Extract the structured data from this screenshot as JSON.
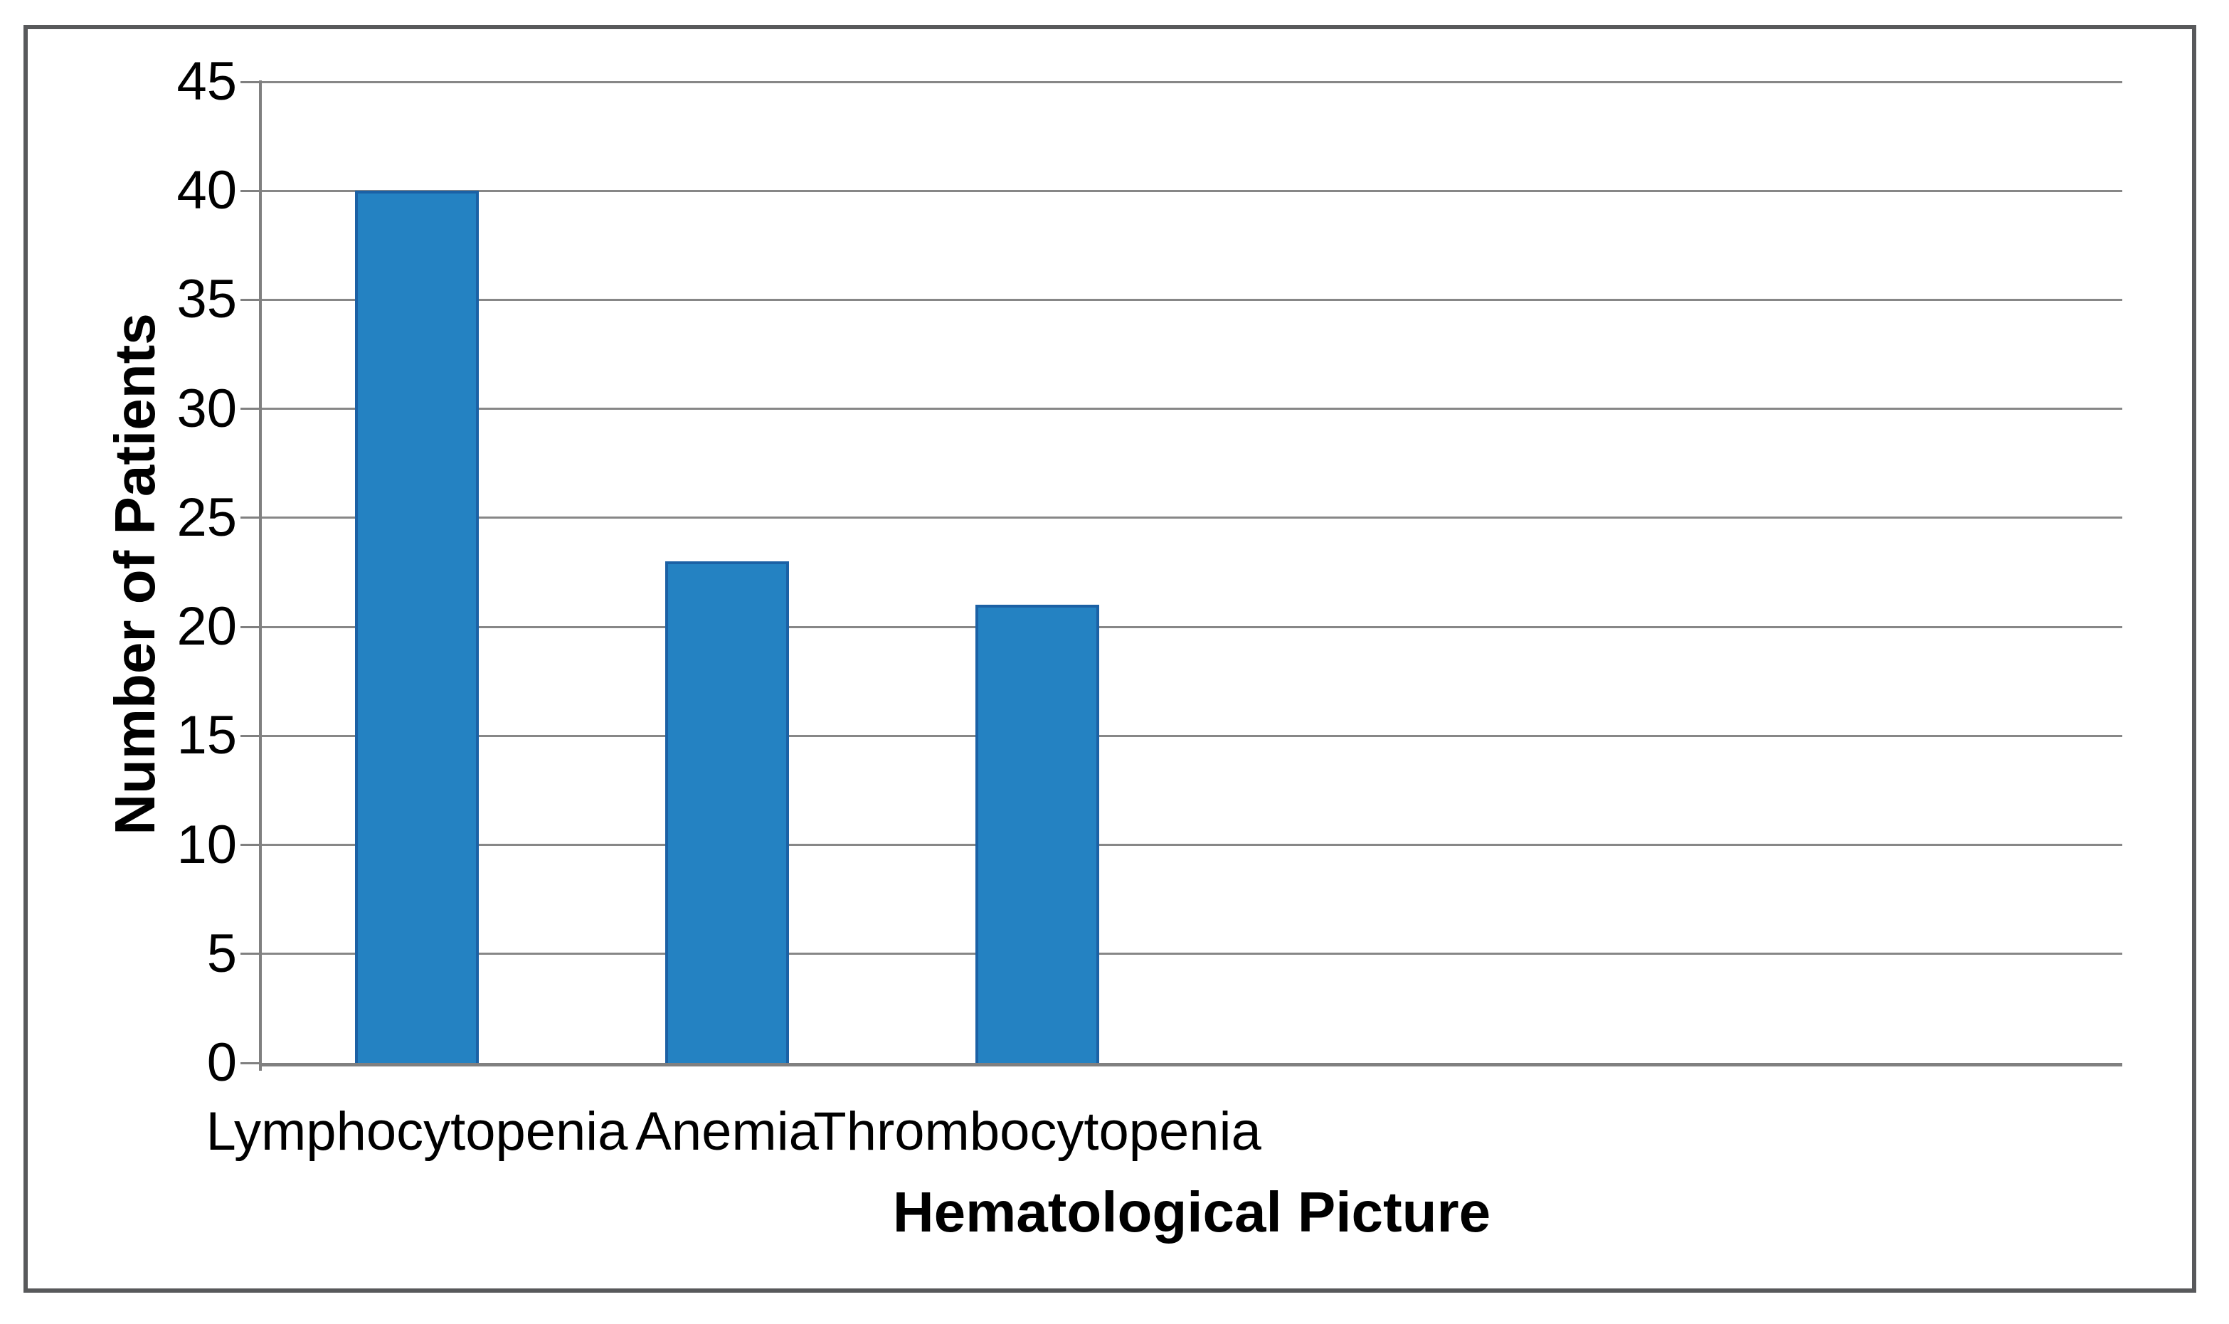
{
  "chart_data": {
    "type": "bar",
    "title": "",
    "categories": [
      "Lymphocytopenia",
      "Anemia",
      "Thrombocytopenia"
    ],
    "values": [
      40,
      23,
      21
    ],
    "xlabel": "Hematological Picture",
    "ylabel": "Number of Patients",
    "ylim": [
      0,
      45
    ],
    "yticks": [
      0,
      5,
      10,
      15,
      20,
      25,
      30,
      35,
      40,
      45
    ],
    "category_slots": 6,
    "bar_fraction": 0.4,
    "grid": true,
    "legend": "none",
    "colors": {
      "bar_fill": "#2482c2",
      "bar_border": "#1b61a5",
      "gridline": "#878787",
      "axis": "#808080",
      "frame": "#58595b",
      "text": "#000000"
    }
  }
}
